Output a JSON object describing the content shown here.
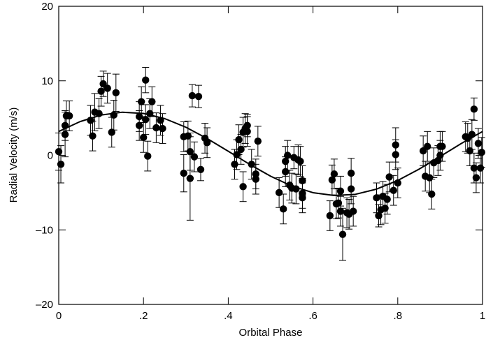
{
  "chart_data": {
    "type": "scatter",
    "xlabel": "Orbital Phase",
    "ylabel": "Radial Velocity (m/s)",
    "xlim": [
      0,
      1
    ],
    "ylim": [
      -20,
      20
    ],
    "xticks": [
      0,
      {
        "value": 0.2,
        "label": ".2"
      },
      {
        "value": 0.4,
        "label": ".4"
      },
      {
        "value": 0.6,
        "label": ".6"
      },
      {
        "value": 0.8,
        "label": ".8"
      },
      1
    ],
    "yticks": [
      {
        "value": -20,
        "label": "–20"
      },
      {
        "value": -10,
        "label": "–10"
      },
      0,
      10,
      20
    ],
    "color": "#000000",
    "x": [
      0.0,
      0.005,
      0.015,
      0.015,
      0.018,
      0.025,
      0.075,
      0.08,
      0.085,
      0.095,
      0.1,
      0.105,
      0.115,
      0.125,
      0.13,
      0.135,
      0.19,
      0.19,
      0.195,
      0.2,
      0.205,
      0.205,
      0.21,
      0.215,
      0.22,
      0.23,
      0.24,
      0.245,
      0.295,
      0.295,
      0.305,
      0.31,
      0.31,
      0.315,
      0.32,
      0.33,
      0.335,
      0.345,
      0.35,
      0.415,
      0.42,
      0.425,
      0.43,
      0.435,
      0.435,
      0.44,
      0.445,
      0.445,
      0.455,
      0.465,
      0.465,
      0.47,
      0.52,
      0.53,
      0.535,
      0.535,
      0.54,
      0.545,
      0.55,
      0.555,
      0.56,
      0.565,
      0.57,
      0.575,
      0.575,
      0.575,
      0.64,
      0.645,
      0.65,
      0.655,
      0.66,
      0.665,
      0.665,
      0.67,
      0.68,
      0.685,
      0.69,
      0.69,
      0.695,
      0.75,
      0.755,
      0.76,
      0.765,
      0.77,
      0.775,
      0.78,
      0.79,
      0.795,
      0.795,
      0.8,
      0.86,
      0.865,
      0.87,
      0.875,
      0.88,
      0.885,
      0.895,
      0.9,
      0.9,
      0.905,
      0.96,
      0.965,
      0.97,
      0.975,
      0.98,
      0.98,
      0.985,
      0.99,
      0.995,
      0.998
    ],
    "values": [
      0.5,
      -1.2,
      2.8,
      4.0,
      5.3,
      5.3,
      4.7,
      2.6,
      5.8,
      5.6,
      8.6,
      9.6,
      9.0,
      3.1,
      5.4,
      8.4,
      5.2,
      4.0,
      7.2,
      2.4,
      4.8,
      10.1,
      -0.1,
      5.6,
      7.2,
      3.7,
      4.7,
      3.6,
      2.5,
      -2.4,
      2.6,
      0.5,
      -3.1,
      8.0,
      -0.2,
      7.9,
      -1.9,
      2.3,
      1.7,
      -1.2,
      0.1,
      2.1,
      0.8,
      -4.2,
      3.1,
      3.6,
      4.0,
      3.2,
      -1.2,
      -2.5,
      -3.2,
      1.9,
      -5.0,
      -7.2,
      -2.2,
      -0.8,
      0.0,
      -4.0,
      -4.4,
      -0.3,
      -4.5,
      -0.6,
      -0.8,
      -3.4,
      -5.1,
      -5.7,
      -8.1,
      -3.3,
      -2.5,
      -6.5,
      -6.4,
      -7.5,
      -4.8,
      -10.6,
      -7.7,
      -7.9,
      -2.4,
      -4.5,
      -7.5,
      -5.7,
      -8.1,
      -7.3,
      -5.5,
      -7.1,
      -5.9,
      -2.9,
      -4.7,
      0.1,
      1.4,
      -3.7,
      0.6,
      -2.8,
      1.2,
      -3.0,
      -5.2,
      -1.0,
      -0.7,
      0.0,
      1.2,
      1.2,
      2.5,
      2.3,
      0.6,
      2.8,
      6.2,
      -1.7,
      -3.0,
      1.6,
      -1.7,
      0.4
    ],
    "errors": [
      2.5,
      2.5,
      3,
      2,
      2,
      2,
      2,
      2,
      2.5,
      2,
      2,
      1.7,
      2,
      2,
      2,
      2.5,
      2,
      2,
      2,
      2,
      2,
      1.7,
      2,
      2,
      2,
      2,
      2,
      2,
      2,
      2.5,
      2,
      2.5,
      5.6,
      1.5,
      2,
      1.5,
      1.5,
      2,
      2,
      2,
      2,
      2,
      2,
      2,
      2,
      2,
      1.5,
      2,
      2,
      2,
      2,
      2,
      2,
      2,
      2,
      2,
      2,
      2,
      2,
      1.5,
      2,
      2,
      2,
      2,
      2,
      2,
      2,
      2,
      2,
      2,
      2,
      2,
      2,
      3.5,
      2,
      2,
      2,
      2,
      2,
      2,
      1.5,
      2,
      2,
      2,
      2,
      2,
      2,
      2,
      2.3,
      2,
      2,
      2,
      2,
      2,
      2,
      2,
      2,
      2,
      2,
      2,
      2,
      2,
      2,
      2,
      1.5,
      2,
      2,
      2,
      2,
      2
    ],
    "fit": {
      "x": [
        0,
        0.05,
        0.1,
        0.15,
        0.2,
        0.25,
        0.3,
        0.35,
        0.4,
        0.45,
        0.5,
        0.55,
        0.6,
        0.65,
        0.7,
        0.75,
        0.8,
        0.85,
        0.9,
        0.95,
        1
      ],
      "values": [
        3.2,
        4.52,
        5.41,
        5.79,
        5.62,
        4.93,
        3.77,
        2.26,
        0.55,
        -1.19,
        -2.8,
        -4.12,
        -5.01,
        -5.39,
        -5.23,
        -4.53,
        -3.37,
        -1.86,
        -0.15,
        1.59,
        3.2
      ]
    }
  }
}
